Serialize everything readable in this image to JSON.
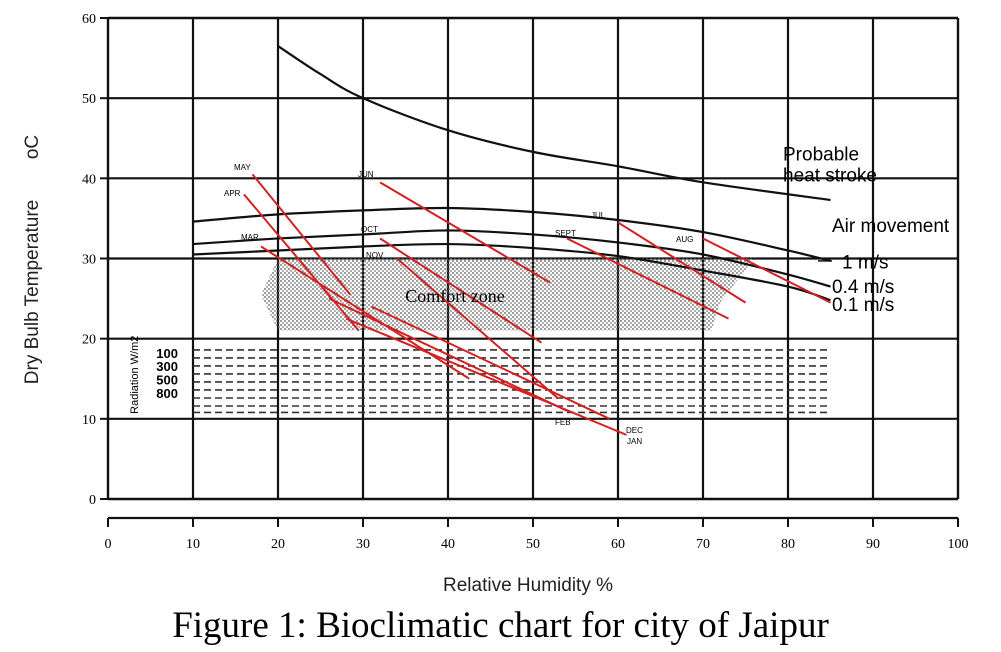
{
  "chart_data": {
    "type": "line",
    "title": "",
    "xlabel": "Relative Humidity %",
    "ylabel": "Dry Bulb Temperature",
    "yunit": "oC",
    "xlim": [
      0,
      100
    ],
    "ylim": [
      0,
      60
    ],
    "x_ticks": [
      "0",
      "10",
      "20",
      "30",
      "40",
      "50",
      "60",
      "70",
      "80",
      "90",
      "100"
    ],
    "y_ticks": [
      "0",
      "10",
      "20",
      "30",
      "40",
      "50",
      "60"
    ],
    "grid": true,
    "heat_stroke_curve": {
      "label_line1": "Probable",
      "label_line2": "heat stroke",
      "x": [
        20,
        25,
        30,
        40,
        50,
        60,
        70,
        85
      ],
      "y": [
        56.5,
        53,
        50,
        46,
        43.3,
        41.5,
        39.5,
        37.3
      ]
    },
    "air_movement": {
      "title": "Air movement",
      "curves": [
        {
          "name": "1 m/s",
          "x": [
            10,
            20,
            30,
            40,
            50,
            60,
            70,
            80,
            85
          ],
          "y": [
            34.6,
            35.5,
            36,
            36.3,
            35.8,
            34.8,
            33.3,
            31,
            29.7
          ]
        },
        {
          "name": "0.4 m/s",
          "x": [
            10,
            20,
            30,
            40,
            50,
            60,
            70,
            80,
            85
          ],
          "y": [
            31.8,
            32.5,
            33,
            33.5,
            33,
            32,
            30.5,
            28,
            26.5
          ]
        },
        {
          "name": "0.1 m/s",
          "x": [
            10,
            20,
            30,
            40,
            50,
            60,
            70,
            80,
            85
          ],
          "y": [
            30.5,
            31,
            31.5,
            31.8,
            31.3,
            30.3,
            28.5,
            26.5,
            24.8
          ]
        }
      ]
    },
    "comfort_zone": {
      "label": "Comfort zone",
      "x": [
        18,
        20,
        76,
        72,
        71,
        20,
        18
      ],
      "y": [
        25.5,
        30,
        30,
        24.5,
        21,
        21,
        25.5
      ]
    },
    "radiation": {
      "title": "Radiation W/m2",
      "labels": [
        "100",
        "300",
        "500",
        "800"
      ],
      "line_temps": [
        18.6,
        17.6,
        16.6,
        15.6,
        14.6,
        13.6,
        12.6,
        11.6,
        10.8
      ],
      "x_range": [
        10,
        85
      ]
    },
    "months": [
      {
        "name": "MAY",
        "x": [
          17,
          28.5
        ],
        "y": [
          40.5,
          25.5
        ]
      },
      {
        "name": "APR",
        "x": [
          16,
          29.5
        ],
        "y": [
          38,
          21
        ]
      },
      {
        "name": "MAR",
        "x": [
          18,
          42.5
        ],
        "y": [
          31.5,
          15
        ]
      },
      {
        "name": "JUN",
        "x": [
          32,
          52
        ],
        "y": [
          39.5,
          27
        ]
      },
      {
        "name": "OCT",
        "x": [
          32,
          51
        ],
        "y": [
          32.5,
          19.5
        ]
      },
      {
        "name": "NOV",
        "x": [
          34,
          53
        ],
        "y": [
          30,
          12.5
        ]
      },
      {
        "name": "JUL",
        "x": [
          60,
          75
        ],
        "y": [
          34.5,
          24.5
        ]
      },
      {
        "name": "SEPT",
        "x": [
          54,
          73
        ],
        "y": [
          32.5,
          22.5
        ]
      },
      {
        "name": "AUG",
        "x": [
          70,
          85
        ],
        "y": [
          32.5,
          24.5
        ]
      },
      {
        "name": "FEB",
        "x": [
          26,
          54
        ],
        "y": [
          25,
          11
        ]
      },
      {
        "name": "DEC",
        "x": [
          31,
          59
        ],
        "y": [
          24,
          10
        ]
      },
      {
        "name": "JAN",
        "x": [
          28,
          61
        ],
        "y": [
          22.5,
          8
        ]
      }
    ]
  },
  "caption": "Figure 1: Bioclimatic chart for city of Jaipur"
}
